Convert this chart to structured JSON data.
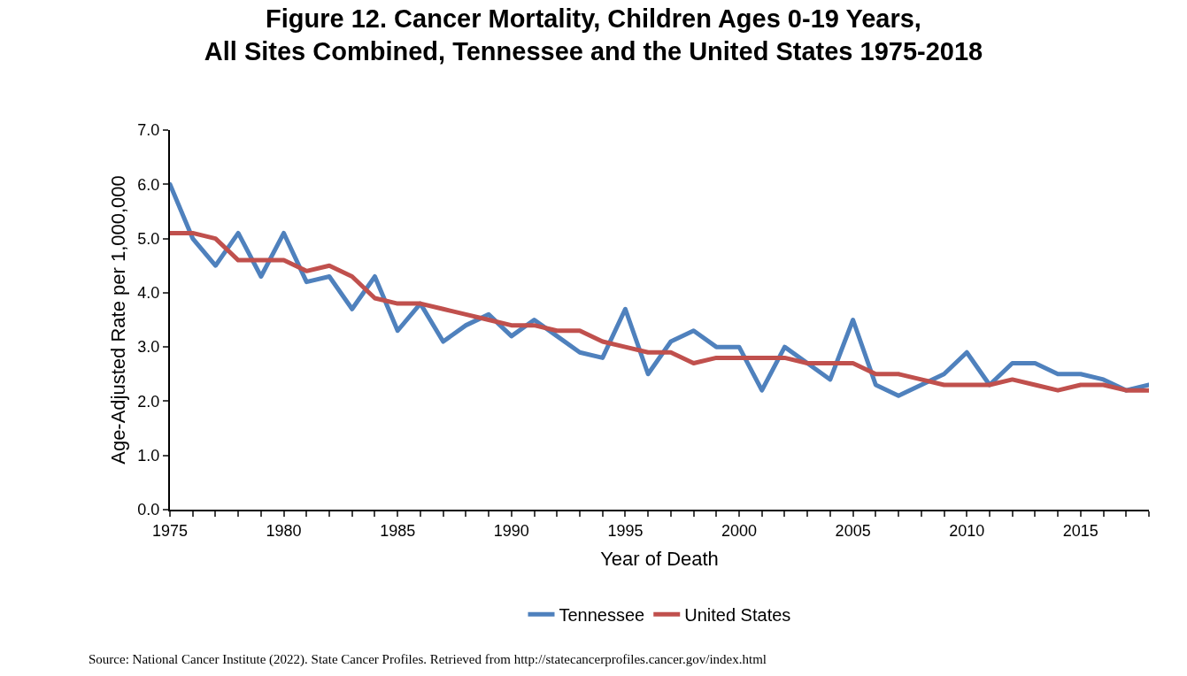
{
  "chart_data": {
    "type": "line",
    "title": "Figure 12. Cancer Mortality, Children Ages 0-19 Years,\nAll Sites Combined, Tennessee and the United States 1975-2018",
    "xlabel": "Year of Death",
    "ylabel": "Age-Adjusted Rate per 1,000,000",
    "x": [
      1975,
      1976,
      1977,
      1978,
      1979,
      1980,
      1981,
      1982,
      1983,
      1984,
      1985,
      1986,
      1987,
      1988,
      1989,
      1990,
      1991,
      1992,
      1993,
      1994,
      1995,
      1996,
      1997,
      1998,
      1999,
      2000,
      2001,
      2002,
      2003,
      2004,
      2005,
      2006,
      2007,
      2008,
      2009,
      2010,
      2011,
      2012,
      2013,
      2014,
      2015,
      2016,
      2017,
      2018
    ],
    "series": [
      {
        "name": "Tennessee",
        "color": "#4f81bd",
        "values": [
          6.0,
          5.0,
          4.5,
          5.1,
          4.3,
          5.1,
          4.2,
          4.3,
          3.7,
          4.3,
          3.3,
          3.8,
          3.1,
          3.4,
          3.6,
          3.2,
          3.5,
          3.2,
          2.9,
          2.8,
          3.7,
          2.5,
          3.1,
          3.3,
          3.0,
          3.0,
          2.2,
          3.0,
          2.7,
          2.4,
          3.5,
          2.3,
          2.1,
          2.3,
          2.5,
          2.9,
          2.3,
          2.7,
          2.7,
          2.5,
          2.5,
          2.4,
          2.2,
          2.3
        ]
      },
      {
        "name": "United States",
        "color": "#c0504d",
        "values": [
          5.1,
          5.1,
          5.0,
          4.6,
          4.6,
          4.6,
          4.4,
          4.5,
          4.3,
          3.9,
          3.8,
          3.8,
          3.7,
          3.6,
          3.5,
          3.4,
          3.4,
          3.3,
          3.3,
          3.1,
          3.0,
          2.9,
          2.9,
          2.7,
          2.8,
          2.8,
          2.8,
          2.8,
          2.7,
          2.7,
          2.7,
          2.5,
          2.5,
          2.4,
          2.3,
          2.3,
          2.3,
          2.4,
          2.3,
          2.2,
          2.3,
          2.3,
          2.2,
          2.2
        ]
      }
    ],
    "xlim": [
      1975,
      2018
    ],
    "xticks": [
      1975,
      {
        "value": 1976,
        "label": null
      },
      {
        "value": 1977,
        "label": null
      },
      {
        "value": 1978,
        "label": null
      },
      {
        "value": 1979,
        "label": null
      },
      1980,
      {
        "value": 1981,
        "label": null
      },
      {
        "value": 1982,
        "label": null
      },
      {
        "value": 1983,
        "label": null
      },
      {
        "value": 1984,
        "label": null
      },
      1985,
      {
        "value": 1986,
        "label": null
      },
      {
        "value": 1987,
        "label": null
      },
      {
        "value": 1988,
        "label": null
      },
      {
        "value": 1989,
        "label": null
      },
      1990,
      {
        "value": 1991,
        "label": null
      },
      {
        "value": 1992,
        "label": null
      },
      {
        "value": 1993,
        "label": null
      },
      {
        "value": 1994,
        "label": null
      },
      1995,
      {
        "value": 1996,
        "label": null
      },
      {
        "value": 1997,
        "label": null
      },
      {
        "value": 1998,
        "label": null
      },
      {
        "value": 1999,
        "label": null
      },
      2000,
      {
        "value": 2001,
        "label": null
      },
      {
        "value": 2002,
        "label": null
      },
      {
        "value": 2003,
        "label": null
      },
      {
        "value": 2004,
        "label": null
      },
      2005,
      {
        "value": 2006,
        "label": null
      },
      {
        "value": 2007,
        "label": null
      },
      {
        "value": 2008,
        "label": null
      },
      {
        "value": 2009,
        "label": null
      },
      2010,
      {
        "value": 2011,
        "label": null
      },
      {
        "value": 2012,
        "label": null
      },
      {
        "value": 2013,
        "label": null
      },
      {
        "value": 2014,
        "label": null
      },
      2015,
      {
        "value": 2016,
        "label": null
      },
      {
        "value": 2017,
        "label": null
      },
      {
        "value": 2018,
        "label": null
      }
    ],
    "ylim": [
      0,
      7
    ],
    "yticks": [
      {
        "value": 0,
        "label": "0.0"
      },
      {
        "value": 1,
        "label": "1.0"
      },
      {
        "value": 2,
        "label": "2.0"
      },
      {
        "value": 3,
        "label": "3.0"
      },
      {
        "value": 4,
        "label": "4.0"
      },
      {
        "value": 5,
        "label": "5.0"
      },
      {
        "value": 6,
        "label": "6.0"
      },
      {
        "value": 7,
        "label": "7.0"
      }
    ],
    "legend": "bottom",
    "marker": "none",
    "line_style": "solid",
    "annotations": [
      "Source: National Cancer Institute (2022). State Cancer Profiles. Retrieved from http://statecancerprofiles.cancer.gov/index.html"
    ]
  }
}
